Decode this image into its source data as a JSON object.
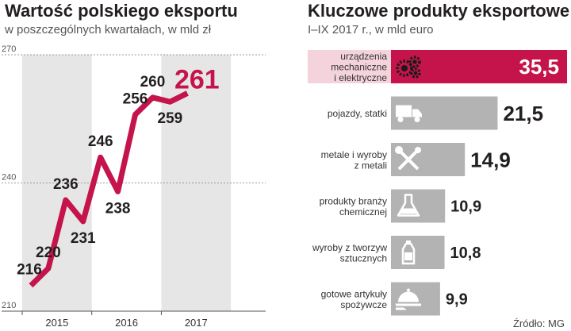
{
  "left_panel": {
    "title": "Wartość polskiego eksportu",
    "subtitle": "w poszczególnych kwartałach, w mld zł"
  },
  "right_panel": {
    "title": "Kluczowe produkty eksportowe",
    "subtitle": "I–IX 2017 r., w mld euro",
    "source": "Źródło: MG"
  },
  "colors": {
    "accent": "#c4144b",
    "bar": "#b3b3b3",
    "shade": "#e6e6e6",
    "text": "#231f20"
  },
  "chart_data": [
    {
      "type": "line",
      "title": "Wartość polskiego eksportu",
      "subtitle": "w poszczególnych kwartałach, w mld zł",
      "x_tick_labels": [
        "2015",
        "2016",
        "2017"
      ],
      "y_tick_labels": [
        "270",
        "240",
        "210"
      ],
      "ylim": [
        210,
        270
      ],
      "shaded_years": [
        "2015",
        "2017"
      ],
      "series": [
        {
          "values": [
            216,
            220,
            236,
            231,
            246,
            238,
            256,
            260,
            259,
            261
          ]
        }
      ],
      "data_labels": [
        "216",
        "220",
        "236",
        "231",
        "246",
        "238",
        "256",
        "260",
        "259",
        "261"
      ],
      "highlight_last": true
    },
    {
      "type": "bar",
      "orientation": "horizontal",
      "title": "Kluczowe produkty eksportowe",
      "subtitle": "I–IX 2017 r., w mld euro",
      "categories": [
        [
          "urządzenia",
          "mechaniczne",
          "i elektryczne"
        ],
        [
          "pojazdy, statki"
        ],
        [
          "metale i wyroby",
          "z metali"
        ],
        [
          "produkty branży",
          "chemicznej"
        ],
        [
          "wyroby z tworzyw",
          "sztucznych"
        ],
        [
          "gotowe artykuły",
          "spożywcze"
        ]
      ],
      "values": [
        35.5,
        21.5,
        14.9,
        10.9,
        10.8,
        9.9
      ],
      "value_labels": [
        "35,5",
        "21,5",
        "14,9",
        "10,9",
        "10,8",
        "9,9"
      ],
      "icons": [
        "gears-icon",
        "truck-icon",
        "tools-icon",
        "flask-icon",
        "bottle-icon",
        "food-tray-icon"
      ],
      "highlight_first": true
    }
  ]
}
